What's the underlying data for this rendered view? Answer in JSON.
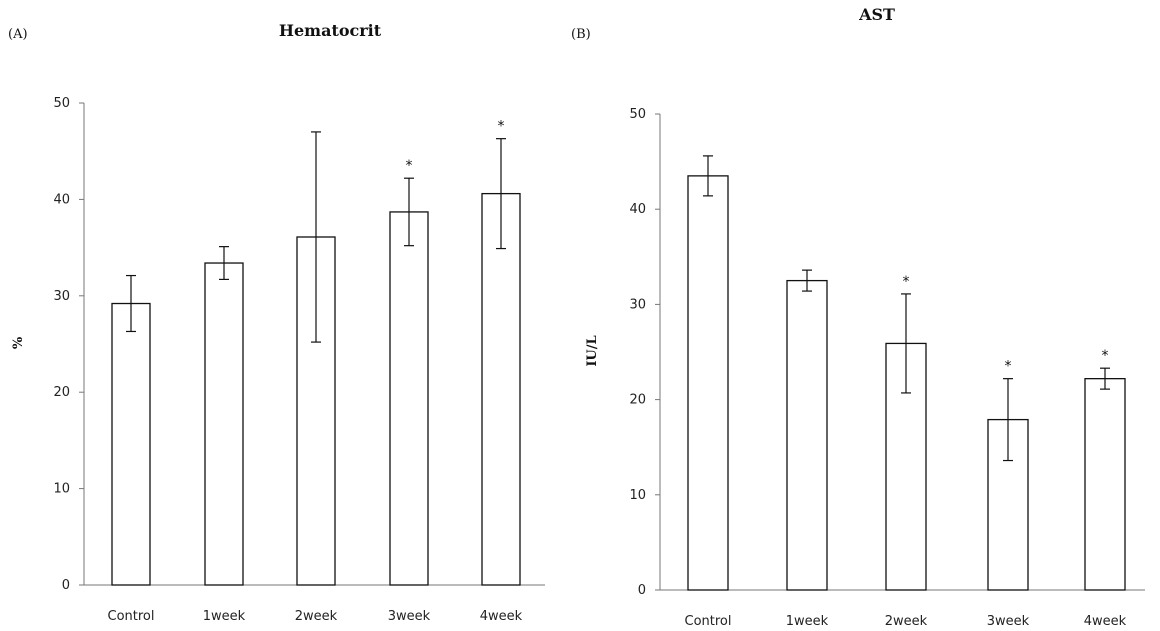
{
  "chart_data": [
    {
      "type": "bar",
      "panel": "(A)",
      "title": "Hematocrit",
      "xlabel": "",
      "ylabel": "%",
      "ylim": [
        0,
        50
      ],
      "yticks": [
        "0",
        "10",
        "20",
        "30",
        "40",
        "50"
      ],
      "categories": [
        "Control",
        "1week",
        "2week",
        "3week",
        "4week"
      ],
      "values": [
        29.2,
        33.4,
        36.1,
        38.7,
        40.6
      ],
      "error": [
        2.9,
        1.7,
        10.9,
        3.5,
        5.7
      ],
      "significance": [
        "",
        "",
        "",
        "*",
        "*"
      ],
      "grid": false,
      "legend": "none"
    },
    {
      "type": "bar",
      "panel": "(B)",
      "title": "AST",
      "xlabel": "",
      "ylabel": "IU/L",
      "ylim": [
        0,
        50
      ],
      "yticks": [
        "0",
        "10",
        "20",
        "30",
        "40",
        "50"
      ],
      "categories": [
        "Control",
        "1week",
        "2week",
        "3week",
        "4week"
      ],
      "values": [
        43.5,
        32.5,
        25.9,
        17.9,
        22.2
      ],
      "error": [
        2.1,
        1.1,
        5.2,
        4.3,
        1.1
      ],
      "significance": [
        "",
        "",
        "*",
        "*",
        "*"
      ],
      "grid": false,
      "legend": "none"
    }
  ]
}
